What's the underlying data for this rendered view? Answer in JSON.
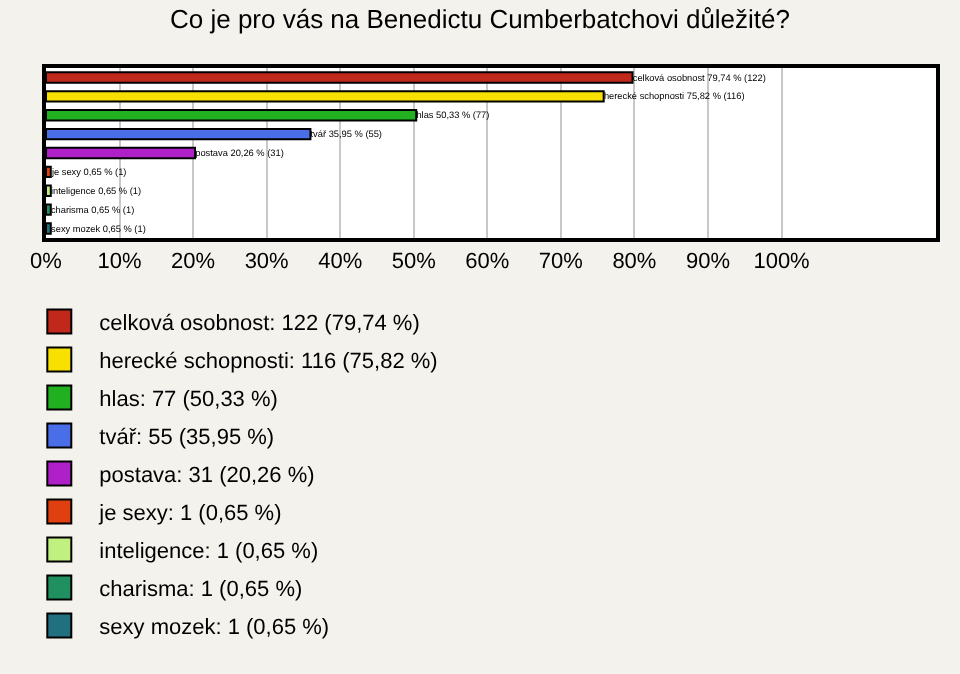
{
  "chart_data": {
    "type": "bar",
    "orientation": "horizontal",
    "title": "Co je pro vás na Benedictu Cumberbatchovi důležité?",
    "categories": [
      "celková osobnost",
      "herecké schopnosti",
      "hlas",
      "tvář",
      "postava",
      "je sexy",
      "inteligence",
      "charisma",
      "sexy mozek"
    ],
    "series": [
      {
        "name": "celková osobnost: 122 (79,74 %)",
        "color": "#c0281c",
        "values": [
          79.74,
          null,
          null,
          null,
          null,
          null,
          null,
          null,
          null
        ],
        "value_labels": [
          "79,74 % (122)",
          null,
          null,
          null,
          null,
          null,
          null,
          null,
          null
        ]
      },
      {
        "name": "herecké schopnosti: 116 (75,82 %)",
        "color": "#f8e000",
        "values": [
          null,
          75.82,
          null,
          null,
          null,
          null,
          null,
          null,
          null
        ],
        "value_labels": [
          null,
          "75,82 % (116)",
          null,
          null,
          null,
          null,
          null,
          null,
          null
        ]
      },
      {
        "name": "hlas: 77 (50,33 %)",
        "color": "#20b020",
        "values": [
          null,
          null,
          50.33,
          null,
          null,
          null,
          null,
          null,
          null
        ],
        "value_labels": [
          null,
          null,
          "50,33 % (77)",
          null,
          null,
          null,
          null,
          null,
          null
        ]
      },
      {
        "name": "tvář: 55 (35,95 %)",
        "color": "#4a6ee8",
        "values": [
          null,
          null,
          null,
          35.95,
          null,
          null,
          null,
          null,
          null
        ],
        "value_labels": [
          null,
          null,
          null,
          "35,95 % (55)",
          null,
          null,
          null,
          null,
          null
        ]
      },
      {
        "name": "postava: 31 (20,26 %)",
        "color": "#b020c8",
        "values": [
          null,
          null,
          null,
          null,
          20.26,
          null,
          null,
          null,
          null
        ],
        "value_labels": [
          null,
          null,
          null,
          null,
          "20,26 % (31)",
          null,
          null,
          null,
          null
        ]
      },
      {
        "name": "je sexy: 1 (0,65 %)",
        "color": "#e04010",
        "values": [
          null,
          null,
          null,
          null,
          null,
          0.65,
          null,
          null,
          null
        ],
        "value_labels": [
          null,
          null,
          null,
          null,
          null,
          "0,65 % (1)",
          null,
          null,
          null
        ]
      },
      {
        "name": "inteligence: 1 (0,65 %)",
        "color": "#c0f080",
        "values": [
          null,
          null,
          null,
          null,
          null,
          null,
          0.65,
          null,
          null
        ],
        "value_labels": [
          null,
          null,
          null,
          null,
          null,
          null,
          "0,65 % (1)",
          null,
          null
        ]
      },
      {
        "name": "charisma: 1 (0,65 %)",
        "color": "#209060",
        "values": [
          null,
          null,
          null,
          null,
          null,
          null,
          null,
          0.65,
          null
        ],
        "value_labels": [
          null,
          null,
          null,
          null,
          null,
          null,
          null,
          "0,65 % (1)",
          null
        ]
      },
      {
        "name": "sexy mozek: 1 (0,65 %)",
        "color": "#207080",
        "values": [
          null,
          null,
          null,
          null,
          null,
          null,
          null,
          null,
          0.65
        ],
        "value_labels": [
          null,
          null,
          null,
          null,
          null,
          null,
          null,
          null,
          "0,65 % (1)"
        ]
      }
    ],
    "xlim": [
      0,
      121
    ],
    "xticks": [
      {
        "value": 0,
        "label": "0%"
      },
      {
        "value": 10,
        "label": "10%"
      },
      {
        "value": 20,
        "label": "20%"
      },
      {
        "value": 30,
        "label": "30%"
      },
      {
        "value": 40,
        "label": "40%"
      },
      {
        "value": 50,
        "label": "50%"
      },
      {
        "value": 60,
        "label": "60%"
      },
      {
        "value": 70,
        "label": "70%"
      },
      {
        "value": 80,
        "label": "80%"
      },
      {
        "value": 90,
        "label": "90%"
      },
      {
        "value": 100,
        "label": "100%"
      }
    ],
    "grid": "x",
    "legend": "bottom",
    "tick_labels": "x"
  }
}
